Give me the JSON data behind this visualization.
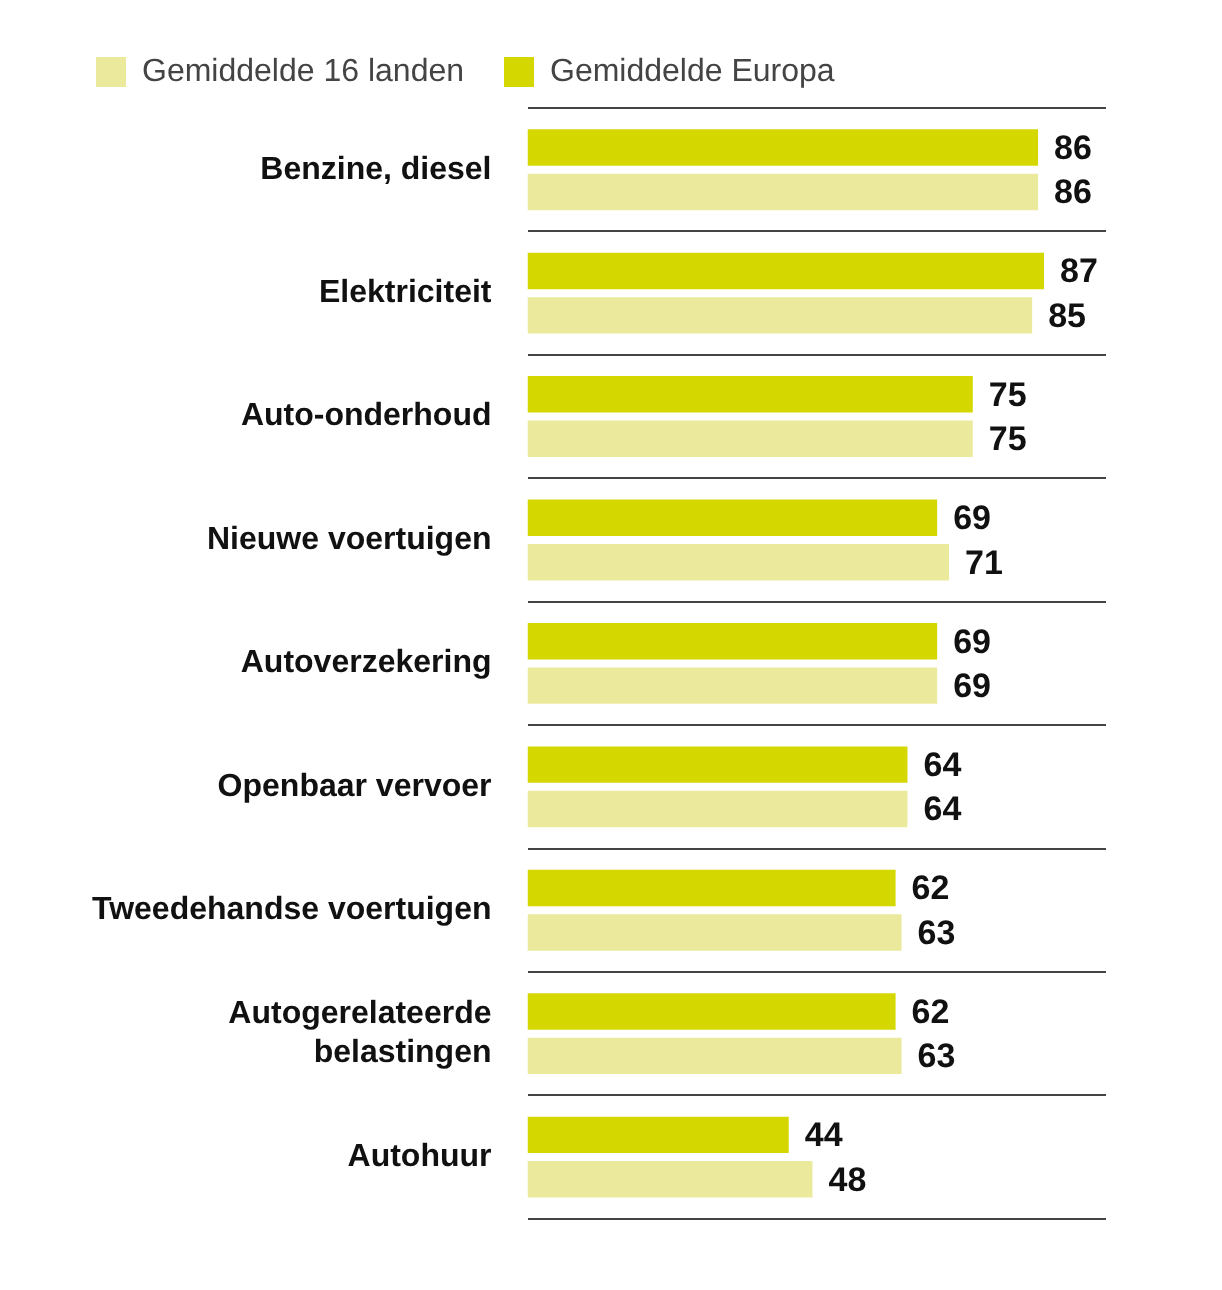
{
  "chart_data": {
    "type": "bar",
    "orientation": "horizontal",
    "categories": [
      "Benzine, diesel",
      "Elektriciteit",
      "Auto-onderhoud",
      "Nieuwe voertuigen",
      "Autoverzekering",
      "Openbaar vervoer",
      "Tweedehandse voertuigen",
      "Autogerelateerde belastingen",
      "Autohuur"
    ],
    "series": [
      {
        "name": "Gemiddelde Europa",
        "color": "#d4d800",
        "values": [
          86,
          87,
          75,
          69,
          69,
          64,
          62,
          62,
          44
        ]
      },
      {
        "name": "Gemiddelde 16 landen",
        "color": "#ebea9c",
        "values": [
          86,
          85,
          75,
          71,
          69,
          64,
          63,
          63,
          48
        ]
      }
    ],
    "data_labels": true,
    "grid": "y",
    "legend": "top left"
  }
}
